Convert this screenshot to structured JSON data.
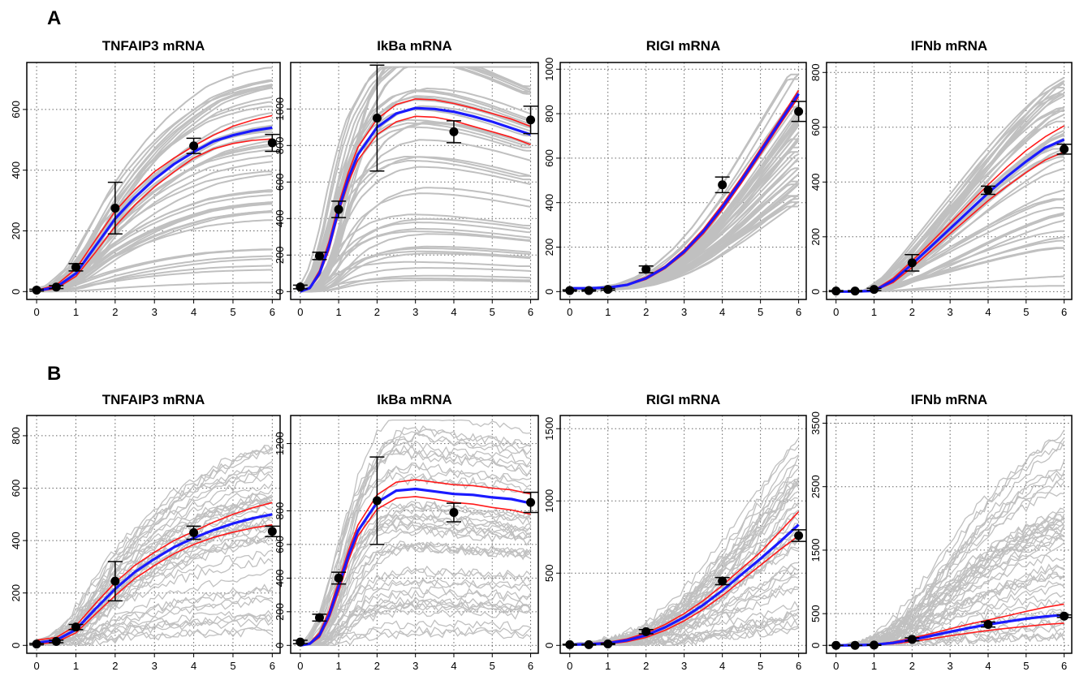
{
  "figure": {
    "panel_labels": [
      "A",
      "B"
    ]
  },
  "chart_data": [
    {
      "panel": "A",
      "type": "line",
      "title": "TNFAIP3 mRNA",
      "xlim": [
        0,
        6
      ],
      "ylim": [
        0,
        740
      ],
      "xticks": [
        0,
        1,
        2,
        3,
        4,
        5,
        6
      ],
      "yticks": [
        0,
        200,
        400,
        600
      ],
      "grid": true,
      "observations": {
        "x": [
          0,
          0.5,
          1,
          2,
          4,
          6
        ],
        "y": [
          5,
          15,
          80,
          275,
          480,
          490
        ],
        "err": [
          3,
          5,
          12,
          85,
          25,
          28
        ]
      },
      "best_fit": {
        "x": [
          0,
          0.5,
          1,
          1.5,
          2,
          2.5,
          3,
          3.5,
          4,
          4.5,
          5,
          5.5,
          6
        ],
        "y": [
          2,
          15,
          60,
          150,
          240,
          310,
          370,
          420,
          460,
          495,
          515,
          530,
          540
        ]
      },
      "ci_upper": {
        "x": [
          0,
          0.5,
          1,
          1.5,
          2,
          2.5,
          3,
          3.5,
          4,
          4.5,
          5,
          5.5,
          6
        ],
        "y": [
          4,
          22,
          75,
          170,
          265,
          335,
          395,
          440,
          480,
          515,
          545,
          565,
          580
        ]
      },
      "ci_lower": {
        "x": [
          0,
          0.5,
          1,
          1.5,
          2,
          2.5,
          3,
          3.5,
          4,
          4.5,
          5,
          5.5,
          6
        ],
        "y": [
          1,
          10,
          50,
          130,
          215,
          285,
          345,
          395,
          440,
          470,
          488,
          498,
          503
        ]
      },
      "ensemble_range": {
        "max_end": 740,
        "min_end": 30
      }
    },
    {
      "panel": "A",
      "type": "line",
      "title": "IkBa mRNA",
      "xlim": [
        0,
        6
      ],
      "ylim": [
        0,
        1230
      ],
      "xticks": [
        0,
        1,
        2,
        3,
        4,
        5,
        6
      ],
      "yticks": [
        0,
        200,
        400,
        600,
        800,
        1000
      ],
      "grid": true,
      "observations": {
        "x": [
          0,
          0.5,
          1,
          2,
          4,
          6
        ],
        "y": [
          25,
          195,
          450,
          950,
          875,
          940
        ],
        "err": [
          10,
          20,
          45,
          290,
          60,
          75
        ]
      },
      "best_fit": {
        "x": [
          0,
          0.25,
          0.5,
          0.75,
          1,
          1.25,
          1.5,
          2,
          2.5,
          3,
          3.5,
          4,
          4.5,
          5,
          5.5,
          6
        ],
        "y": [
          0,
          20,
          100,
          250,
          450,
          620,
          750,
          900,
          975,
          1005,
          1000,
          985,
          960,
          930,
          895,
          860
        ]
      },
      "ci_upper": {
        "x": [
          0,
          0.25,
          0.5,
          0.75,
          1,
          1.25,
          1.5,
          2,
          2.5,
          3,
          3.5,
          4,
          4.5,
          5,
          5.5,
          6
        ],
        "y": [
          0,
          25,
          115,
          275,
          480,
          650,
          790,
          945,
          1025,
          1055,
          1050,
          1030,
          1005,
          975,
          945,
          905
        ]
      },
      "ci_lower": {
        "x": [
          0,
          0.25,
          0.5,
          0.75,
          1,
          1.25,
          1.5,
          2,
          2.5,
          3,
          3.5,
          4,
          4.5,
          5,
          5.5,
          6
        ],
        "y": [
          0,
          15,
          90,
          230,
          430,
          595,
          720,
          860,
          930,
          960,
          955,
          935,
          905,
          875,
          845,
          805
        ]
      },
      "ensemble_range": {
        "max_end": 1220,
        "min_end": 50
      }
    },
    {
      "panel": "A",
      "type": "line",
      "title": "RIGI mRNA",
      "xlim": [
        0,
        6
      ],
      "ylim": [
        0,
        1010
      ],
      "xticks": [
        0,
        1,
        2,
        3,
        4,
        5,
        6
      ],
      "yticks": [
        0,
        200,
        400,
        600,
        800,
        1000
      ],
      "grid": true,
      "observations": {
        "x": [
          0,
          0.5,
          1,
          2,
          4,
          6
        ],
        "y": [
          5,
          5,
          10,
          100,
          480,
          810
        ],
        "err": [
          3,
          3,
          4,
          15,
          35,
          45
        ]
      },
      "best_fit": {
        "x": [
          0,
          0.5,
          1,
          1.5,
          2,
          2.5,
          3,
          3.5,
          4,
          4.5,
          5,
          5.5,
          6
        ],
        "y": [
          15,
          15,
          18,
          30,
          60,
          110,
          180,
          270,
          380,
          500,
          630,
          760,
          890
        ]
      },
      "ci_upper": {
        "x": [
          0,
          0.5,
          1,
          1.5,
          2,
          2.5,
          3,
          3.5,
          4,
          4.5,
          5,
          5.5,
          6
        ],
        "y": [
          15,
          16,
          20,
          33,
          65,
          115,
          188,
          280,
          392,
          512,
          642,
          772,
          905
        ]
      },
      "ci_lower": {
        "x": [
          0,
          0.5,
          1,
          1.5,
          2,
          2.5,
          3,
          3.5,
          4,
          4.5,
          5,
          5.5,
          6
        ],
        "y": [
          14,
          14,
          16,
          28,
          55,
          104,
          172,
          260,
          368,
          488,
          618,
          748,
          875
        ]
      },
      "ensemble_range": {
        "max_end": 980,
        "min_end": 380
      }
    },
    {
      "panel": "A",
      "type": "line",
      "title": "IFNb mRNA",
      "xlim": [
        0,
        6
      ],
      "ylim": [
        0,
        820
      ],
      "xticks": [
        0,
        1,
        2,
        3,
        4,
        5,
        6
      ],
      "yticks": [
        0,
        200,
        400,
        600,
        800
      ],
      "grid": true,
      "observations": {
        "x": [
          0,
          0.5,
          1,
          2,
          4,
          6
        ],
        "y": [
          2,
          2,
          8,
          105,
          370,
          520
        ],
        "err": [
          2,
          2,
          4,
          30,
          15,
          18
        ]
      },
      "best_fit": {
        "x": [
          0,
          0.5,
          1,
          1.5,
          2,
          2.5,
          3,
          3.5,
          4,
          4.5,
          5,
          5.5,
          6
        ],
        "y": [
          0,
          0,
          3,
          40,
          100,
          165,
          230,
          295,
          360,
          420,
          475,
          525,
          555
        ]
      },
      "ci_upper": {
        "x": [
          0,
          0.5,
          1,
          1.5,
          2,
          2.5,
          3,
          3.5,
          4,
          4.5,
          5,
          5.5,
          6
        ],
        "y": [
          0,
          1,
          5,
          48,
          112,
          180,
          250,
          320,
          390,
          455,
          515,
          565,
          605
        ]
      },
      "ci_lower": {
        "x": [
          0,
          0.5,
          1,
          1.5,
          2,
          2.5,
          3,
          3.5,
          4,
          4.5,
          5,
          5.5,
          6
        ],
        "y": [
          0,
          0,
          2,
          33,
          88,
          150,
          212,
          272,
          332,
          385,
          435,
          480,
          510
        ]
      },
      "ensemble_range": {
        "max_end": 820,
        "min_end": 20
      }
    },
    {
      "panel": "B",
      "type": "line",
      "title": "TNFAIP3 mRNA",
      "xlim": [
        0,
        6
      ],
      "ylim": [
        0,
        860
      ],
      "xticks": [
        0,
        1,
        2,
        3,
        4,
        5,
        6
      ],
      "yticks": [
        0,
        200,
        400,
        600,
        800
      ],
      "grid": true,
      "observations": {
        "x": [
          0,
          0.5,
          1,
          2,
          4,
          6
        ],
        "y": [
          5,
          15,
          70,
          245,
          430,
          435
        ],
        "err": [
          3,
          5,
          10,
          75,
          25,
          20
        ]
      },
      "best_fit": {
        "x": [
          0,
          0.5,
          1,
          1.5,
          2,
          2.5,
          3,
          3.5,
          4,
          4.5,
          5,
          5.5,
          6
        ],
        "y": [
          10,
          20,
          60,
          140,
          215,
          280,
          330,
          375,
          410,
          440,
          465,
          485,
          500
        ]
      },
      "ci_upper": {
        "x": [
          0,
          0.5,
          1,
          1.5,
          2,
          2.5,
          3,
          3.5,
          4,
          4.5,
          5,
          5.5,
          6
        ],
        "y": [
          20,
          30,
          75,
          160,
          240,
          305,
          355,
          400,
          435,
          470,
          500,
          525,
          545
        ]
      },
      "ci_lower": {
        "x": [
          0,
          0.5,
          1,
          1.5,
          2,
          2.5,
          3,
          3.5,
          4,
          4.5,
          5,
          5.5,
          6
        ],
        "y": [
          5,
          12,
          48,
          120,
          190,
          255,
          305,
          350,
          385,
          412,
          432,
          448,
          460
        ]
      },
      "ensemble_range": {
        "max_end": 840,
        "min_end": 30
      }
    },
    {
      "panel": "B",
      "type": "line",
      "title": "IkBa mRNA",
      "xlim": [
        0,
        6
      ],
      "ylim": [
        0,
        1340
      ],
      "xticks": [
        0,
        1,
        2,
        3,
        4,
        5,
        6
      ],
      "yticks": [
        0,
        200,
        400,
        600,
        800,
        1200
      ],
      "grid": true,
      "observations": {
        "x": [
          0,
          0.5,
          1,
          2,
          4,
          6
        ],
        "y": [
          20,
          165,
          400,
          860,
          790,
          850
        ],
        "err": [
          10,
          20,
          35,
          260,
          55,
          60
        ]
      },
      "best_fit": {
        "x": [
          0,
          0.25,
          0.5,
          0.75,
          1,
          1.25,
          1.5,
          2,
          2.5,
          3,
          3.5,
          4,
          4.5,
          5,
          5.5,
          6
        ],
        "y": [
          0,
          10,
          60,
          180,
          350,
          530,
          680,
          850,
          920,
          930,
          915,
          900,
          895,
          880,
          870,
          845
        ]
      },
      "ci_upper": {
        "x": [
          0,
          0.25,
          0.5,
          0.75,
          1,
          1.25,
          1.5,
          2,
          2.5,
          3,
          3.5,
          4,
          4.5,
          5,
          5.5,
          6
        ],
        "y": [
          0,
          15,
          75,
          205,
          380,
          560,
          715,
          895,
          970,
          985,
          970,
          955,
          950,
          935,
          925,
          900
        ]
      },
      "ci_lower": {
        "x": [
          0,
          0.25,
          0.5,
          0.75,
          1,
          1.25,
          1.5,
          2,
          2.5,
          3,
          3.5,
          4,
          4.5,
          5,
          5.5,
          6
        ],
        "y": [
          0,
          6,
          48,
          160,
          320,
          500,
          650,
          810,
          875,
          885,
          870,
          850,
          840,
          820,
          805,
          780
        ]
      },
      "ensemble_range": {
        "max_end": 1280,
        "min_end": 0
      }
    },
    {
      "panel": "B",
      "type": "line",
      "title": "RIGI mRNA",
      "xlim": [
        0,
        6
      ],
      "ylim": [
        0,
        1560
      ],
      "xticks": [
        0,
        1,
        2,
        3,
        4,
        5,
        6
      ],
      "yticks": [
        0,
        500,
        1000,
        1500
      ],
      "grid": true,
      "observations": {
        "x": [
          0,
          0.5,
          1,
          2,
          4,
          6
        ],
        "y": [
          5,
          5,
          10,
          95,
          445,
          760
        ],
        "err": [
          3,
          3,
          4,
          15,
          25,
          40
        ]
      },
      "best_fit": {
        "x": [
          0,
          0.5,
          1,
          1.5,
          2,
          2.5,
          3,
          3.5,
          4,
          4.5,
          5,
          5.5,
          6
        ],
        "y": [
          5,
          8,
          15,
          35,
          70,
          125,
          195,
          280,
          380,
          490,
          600,
          715,
          835
        ]
      },
      "ci_upper": {
        "x": [
          0,
          0.5,
          1,
          1.5,
          2,
          2.5,
          3,
          3.5,
          4,
          4.5,
          5,
          5.5,
          6
        ],
        "y": [
          8,
          12,
          22,
          45,
          85,
          145,
          220,
          310,
          415,
          530,
          645,
          785,
          925
        ]
      },
      "ci_lower": {
        "x": [
          0,
          0.5,
          1,
          1.5,
          2,
          2.5,
          3,
          3.5,
          4,
          4.5,
          5,
          5.5,
          6
        ],
        "y": [
          3,
          5,
          10,
          26,
          55,
          105,
          170,
          250,
          345,
          450,
          555,
          660,
          760
        ]
      },
      "ensemble_range": {
        "max_end": 1500,
        "min_end": 100
      }
    },
    {
      "panel": "B",
      "type": "line",
      "title": "IFNb mRNA",
      "xlim": [
        0,
        6
      ],
      "ylim": [
        0,
        3550
      ],
      "xticks": [
        0,
        1,
        2,
        3,
        4,
        5,
        6
      ],
      "yticks": [
        0,
        500,
        1500,
        2500,
        3500
      ],
      "grid": true,
      "observations": {
        "x": [
          0,
          0.5,
          1,
          2,
          4,
          6
        ],
        "y": [
          0,
          0,
          5,
          95,
          330,
          460
        ],
        "err": [
          2,
          2,
          5,
          25,
          40,
          20
        ]
      },
      "best_fit": {
        "x": [
          0,
          0.5,
          1,
          1.5,
          2,
          2.5,
          3,
          3.5,
          4,
          4.5,
          5,
          5.5,
          6
        ],
        "y": [
          0,
          2,
          10,
          40,
          90,
          150,
          215,
          275,
          330,
          375,
          420,
          455,
          480
        ]
      },
      "ci_upper": {
        "x": [
          0,
          0.5,
          1,
          1.5,
          2,
          2.5,
          3,
          3.5,
          4,
          4.5,
          5,
          5.5,
          6
        ],
        "y": [
          0,
          3,
          15,
          55,
          115,
          185,
          260,
          335,
          400,
          465,
          535,
          600,
          650
        ]
      },
      "ci_lower": {
        "x": [
          0,
          0.5,
          1,
          1.5,
          2,
          2.5,
          3,
          3.5,
          4,
          4.5,
          5,
          5.5,
          6
        ],
        "y": [
          0,
          1,
          6,
          25,
          60,
          105,
          150,
          195,
          235,
          270,
          300,
          330,
          350
        ]
      },
      "ensemble_range": {
        "max_end": 3500,
        "min_end": 0
      }
    }
  ]
}
